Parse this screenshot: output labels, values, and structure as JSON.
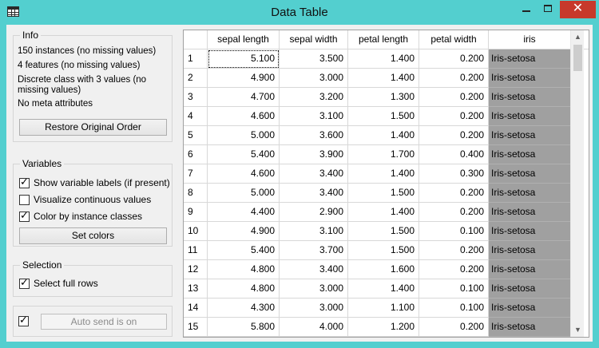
{
  "window": {
    "title": "Data Table"
  },
  "info": {
    "title": "Info",
    "lines": [
      "150 instances (no missing values)",
      "4 features (no missing values)",
      "Discrete class with 3 values (no missing values)",
      "No meta attributes"
    ],
    "restore_button": "Restore Original Order"
  },
  "variables": {
    "title": "Variables",
    "options": [
      {
        "label": "Show variable labels (if present)",
        "checked": true
      },
      {
        "label": "Visualize continuous values",
        "checked": false
      },
      {
        "label": "Color by instance classes",
        "checked": true
      }
    ],
    "set_colors_button": "Set colors"
  },
  "selection": {
    "title": "Selection",
    "select_full_rows": {
      "label": "Select full rows",
      "checked": true
    }
  },
  "autosend": {
    "checked": true,
    "label": "Auto send is on"
  },
  "table": {
    "columns": [
      "sepal length",
      "sepal width",
      "petal length",
      "petal width",
      "iris"
    ],
    "rows": [
      {
        "index": "1",
        "values": [
          "5.100",
          "3.500",
          "1.400",
          "0.200"
        ],
        "class": "Iris-setosa"
      },
      {
        "index": "2",
        "values": [
          "4.900",
          "3.000",
          "1.400",
          "0.200"
        ],
        "class": "Iris-setosa"
      },
      {
        "index": "3",
        "values": [
          "4.700",
          "3.200",
          "1.300",
          "0.200"
        ],
        "class": "Iris-setosa"
      },
      {
        "index": "4",
        "values": [
          "4.600",
          "3.100",
          "1.500",
          "0.200"
        ],
        "class": "Iris-setosa"
      },
      {
        "index": "5",
        "values": [
          "5.000",
          "3.600",
          "1.400",
          "0.200"
        ],
        "class": "Iris-setosa"
      },
      {
        "index": "6",
        "values": [
          "5.400",
          "3.900",
          "1.700",
          "0.400"
        ],
        "class": "Iris-setosa"
      },
      {
        "index": "7",
        "values": [
          "4.600",
          "3.400",
          "1.400",
          "0.300"
        ],
        "class": "Iris-setosa"
      },
      {
        "index": "8",
        "values": [
          "5.000",
          "3.400",
          "1.500",
          "0.200"
        ],
        "class": "Iris-setosa"
      },
      {
        "index": "9",
        "values": [
          "4.400",
          "2.900",
          "1.400",
          "0.200"
        ],
        "class": "Iris-setosa"
      },
      {
        "index": "10",
        "values": [
          "4.900",
          "3.100",
          "1.500",
          "0.100"
        ],
        "class": "Iris-setosa"
      },
      {
        "index": "11",
        "values": [
          "5.400",
          "3.700",
          "1.500",
          "0.200"
        ],
        "class": "Iris-setosa"
      },
      {
        "index": "12",
        "values": [
          "4.800",
          "3.400",
          "1.600",
          "0.200"
        ],
        "class": "Iris-setosa"
      },
      {
        "index": "13",
        "values": [
          "4.800",
          "3.000",
          "1.400",
          "0.100"
        ],
        "class": "Iris-setosa"
      },
      {
        "index": "14",
        "values": [
          "4.300",
          "3.000",
          "1.100",
          "0.100"
        ],
        "class": "Iris-setosa"
      },
      {
        "index": "15",
        "values": [
          "5.800",
          "4.000",
          "1.200",
          "0.200"
        ],
        "class": "Iris-setosa"
      }
    ]
  },
  "colors": {
    "window_frame": "#53cfcf",
    "close_button": "#c7392b",
    "class_cell": "#a0a0a0"
  },
  "icons": [
    "table-icon",
    "minimize-icon",
    "maximize-icon",
    "close-icon",
    "checkbox-tick-icon",
    "scroll-up-icon",
    "scroll-down-icon"
  ]
}
